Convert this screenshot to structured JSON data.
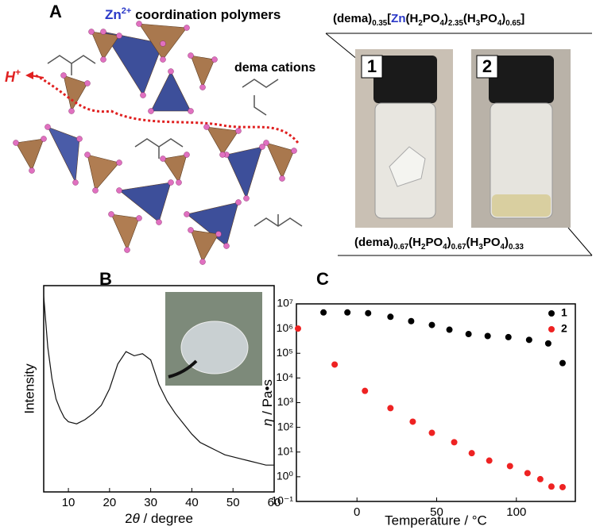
{
  "panel_a": {
    "label": "A",
    "title": [
      {
        "text": "Zn",
        "color": "#2a38c8"
      },
      {
        "text": "2+",
        "sup": true,
        "color": "#2a38c8"
      },
      {
        "text": " coordination polymers"
      }
    ],
    "cation_label": "dema cations",
    "proton": [
      {
        "text": "H",
        "color": "#e02020"
      },
      {
        "text": "+",
        "sup": true,
        "color": "#e02020"
      }
    ],
    "formula_top": [
      {
        "text": "(dema)"
      },
      {
        "text": "0.35",
        "sub": true
      },
      {
        "text": "["
      },
      {
        "text": "Zn",
        "color": "#2a38c8"
      },
      {
        "text": "(H"
      },
      {
        "text": "2",
        "sub": true
      },
      {
        "text": "PO"
      },
      {
        "text": "4",
        "sub": true
      },
      {
        "text": ")"
      },
      {
        "text": "2.35",
        "sub": true
      },
      {
        "text": "(H"
      },
      {
        "text": "3",
        "sub": true
      },
      {
        "text": "PO"
      },
      {
        "text": "4",
        "sub": true
      },
      {
        "text": ")"
      },
      {
        "text": "0.65",
        "sub": true
      },
      {
        "text": "]"
      }
    ],
    "vial_labels": [
      "1",
      "2"
    ],
    "formula_bottom": [
      {
        "text": "(dema)"
      },
      {
        "text": "0.67",
        "sub": true
      },
      {
        "text": "(H"
      },
      {
        "text": "2",
        "sub": true
      },
      {
        "text": "PO"
      },
      {
        "text": "4",
        "sub": true
      },
      {
        "text": ")"
      },
      {
        "text": "0.67",
        "sub": true
      },
      {
        "text": "(H"
      },
      {
        "text": "3",
        "sub": true
      },
      {
        "text": "PO"
      },
      {
        "text": "4",
        "sub": true
      },
      {
        "text": ")"
      },
      {
        "text": "0.33",
        "sub": true
      }
    ]
  },
  "chart_data": [
    {
      "type": "line",
      "label": "B",
      "xlabel": [
        {
          "text": "2"
        },
        {
          "text": "θ",
          "italic": true
        },
        {
          "text": " / degree"
        }
      ],
      "ylabel": "Intensity",
      "color": "#111111",
      "x": [
        4,
        5,
        6,
        7,
        8,
        9,
        10,
        12,
        14,
        16,
        18,
        20,
        22,
        24,
        26,
        28,
        30,
        32,
        34,
        36,
        38,
        40,
        42,
        44,
        46,
        48,
        50,
        52,
        54,
        56,
        58,
        60
      ],
      "values": [
        95,
        70,
        55,
        45,
        40,
        36,
        34,
        33,
        35,
        38,
        42,
        50,
        62,
        68,
        66,
        67,
        64,
        52,
        44,
        38,
        33,
        28,
        24,
        22,
        20,
        18,
        17,
        16,
        15,
        14,
        13,
        13
      ],
      "xlim": [
        4,
        60
      ],
      "xticks": [
        10,
        20,
        30,
        40,
        50,
        60
      ],
      "ylim": [
        0,
        100
      ]
    },
    {
      "type": "scatter",
      "label": "C",
      "log_y": true,
      "legend": "upper right",
      "xlabel": "Temperature / °C",
      "ylabel": [
        {
          "text": "η",
          "italic": true
        },
        {
          "text": " / Pa•s"
        }
      ],
      "xlim": [
        -38,
        137
      ],
      "xticks": [
        0,
        50,
        100
      ],
      "ylim": [
        0.1,
        10000000
      ],
      "yticks": [
        {
          "value": 0.1,
          "label": "10⁻¹"
        },
        {
          "value": 1,
          "label": "10⁰"
        },
        {
          "value": 10,
          "label": "10¹"
        },
        {
          "value": 100,
          "label": "10²"
        },
        {
          "value": 1000,
          "label": "10³"
        },
        {
          "value": 10000,
          "label": "10⁴"
        },
        {
          "value": 100000,
          "label": "10⁵"
        },
        {
          "value": 1000000,
          "label": "10⁶"
        },
        {
          "value": 10000000,
          "label": "10⁷"
        }
      ],
      "series": [
        {
          "name": "1",
          "color": "#000000",
          "x": [
            -21,
            -6,
            7,
            21,
            34,
            47,
            58,
            70,
            82,
            95,
            108,
            120,
            129
          ],
          "values": [
            4500000,
            4500000,
            4200000,
            3000000,
            2000000,
            1400000,
            900000,
            600000,
            500000,
            450000,
            350000,
            250000,
            40000
          ]
        },
        {
          "name": "2",
          "color": "#ee2222",
          "x": [
            -37,
            -14,
            5,
            21,
            35,
            47,
            61,
            72,
            83,
            96,
            107,
            115,
            122,
            129
          ],
          "values": [
            1000000,
            35000,
            3000,
            600,
            170,
            60,
            25,
            9,
            4.5,
            2.7,
            1.4,
            0.8,
            0.4,
            0.38
          ]
        }
      ]
    }
  ]
}
